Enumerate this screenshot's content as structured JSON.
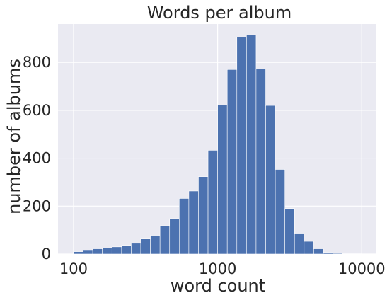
{
  "chart_data": {
    "type": "bar",
    "subtype": "histogram",
    "title": "Words per album",
    "xlabel": "word count",
    "ylabel": "number of albums",
    "x_scale": "log",
    "xlim": [
      78,
      12500
    ],
    "ylim": [
      0,
      960
    ],
    "x_ticks": [
      100,
      1000,
      10000
    ],
    "x_tick_labels": [
      "100",
      "1000",
      "10000"
    ],
    "y_ticks": [
      0,
      200,
      400,
      600,
      800
    ],
    "y_tick_labels": [
      "0",
      "200",
      "400",
      "600",
      "800"
    ],
    "grid": true,
    "bins_log10_start": 2.0,
    "bins_log10_end": 4.0,
    "values": [
      10,
      15,
      22,
      25,
      30,
      36,
      45,
      63,
      78,
      118,
      148,
      232,
      263,
      323,
      433,
      622,
      770,
      905,
      915,
      772,
      620,
      353,
      190,
      84,
      53,
      22,
      7,
      3,
      1,
      1
    ],
    "bar_color": "#4c72b0",
    "background_color": "#eaeaf2"
  }
}
